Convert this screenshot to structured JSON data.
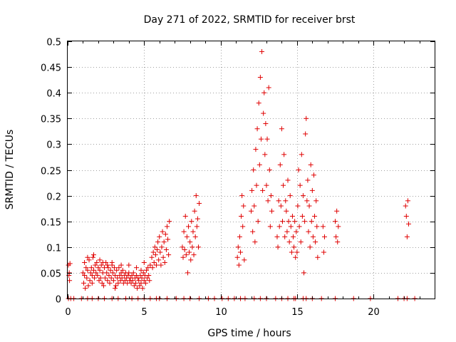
{
  "chart_data": {
    "type": "scatter",
    "title": "Day 271 of 2022, SRMTID for receiver brst",
    "xlabel": "GPS time / hours",
    "ylabel": "SRMTID / TECUs",
    "xlim": [
      0,
      24
    ],
    "ylim": [
      0,
      0.5
    ],
    "x_ticks": [
      0,
      5,
      10,
      15,
      20
    ],
    "y_ticks": [
      0,
      0.05,
      0.1,
      0.15,
      0.2,
      0.25,
      0.3,
      0.35,
      0.4,
      0.45,
      0.5
    ],
    "grid": true,
    "legend": "none",
    "marker": "+",
    "color": "#e00000",
    "series": [
      {
        "points": [
          [
            0.05,
            0.065
          ],
          [
            0.1,
            0.05
          ],
          [
            0.12,
            0.035
          ],
          [
            0.15,
            0.068
          ],
          [
            0.08,
            0.045
          ],
          [
            1.0,
            0.05
          ],
          [
            1.05,
            0.03
          ],
          [
            1.1,
            0.045
          ],
          [
            1.15,
            0.02
          ],
          [
            1.2,
            0.06
          ],
          [
            1.25,
            0.04
          ],
          [
            1.3,
            0.055
          ],
          [
            1.35,
            0.025
          ],
          [
            1.4,
            0.075
          ],
          [
            1.45,
            0.035
          ],
          [
            1.5,
            0.05
          ],
          [
            1.55,
            0.06
          ],
          [
            1.6,
            0.045
          ],
          [
            1.65,
            0.08
          ],
          [
            1.7,
            0.055
          ],
          [
            1.75,
            0.04
          ],
          [
            1.8,
            0.065
          ],
          [
            1.85,
            0.05
          ],
          [
            1.9,
            0.07
          ],
          [
            1.95,
            0.045
          ],
          [
            2.0,
            0.06
          ],
          [
            2.05,
            0.035
          ],
          [
            2.1,
            0.055
          ],
          [
            2.15,
            0.04
          ],
          [
            2.2,
            0.065
          ],
          [
            2.25,
            0.03
          ],
          [
            2.3,
            0.05
          ],
          [
            2.35,
            0.025
          ],
          [
            2.4,
            0.06
          ],
          [
            2.45,
            0.04
          ],
          [
            2.5,
            0.07
          ],
          [
            2.55,
            0.05
          ],
          [
            2.6,
            0.035
          ],
          [
            2.65,
            0.06
          ],
          [
            2.7,
            0.045
          ],
          [
            2.75,
            0.03
          ],
          [
            2.8,
            0.055
          ],
          [
            2.85,
            0.04
          ],
          [
            2.9,
            0.065
          ],
          [
            2.95,
            0.05
          ],
          [
            3.0,
            0.035
          ],
          [
            3.05,
            0.06
          ],
          [
            3.1,
            0.045
          ],
          [
            3.15,
            0.025
          ],
          [
            3.2,
            0.055
          ],
          [
            3.25,
            0.04
          ],
          [
            3.3,
            0.03
          ],
          [
            3.35,
            0.06
          ],
          [
            3.4,
            0.045
          ],
          [
            3.45,
            0.035
          ],
          [
            3.5,
            0.05
          ],
          [
            3.55,
            0.04
          ],
          [
            3.6,
            0.055
          ],
          [
            3.65,
            0.03
          ],
          [
            3.7,
            0.045
          ],
          [
            3.75,
            0.035
          ],
          [
            3.8,
            0.05
          ],
          [
            3.85,
            0.04
          ],
          [
            3.9,
            0.03
          ],
          [
            3.95,
            0.045
          ],
          [
            4.0,
            0.05
          ],
          [
            4.05,
            0.035
          ],
          [
            4.1,
            0.04
          ],
          [
            4.15,
            0.03
          ],
          [
            4.2,
            0.045
          ],
          [
            4.25,
            0.035
          ],
          [
            4.3,
            0.05
          ],
          [
            4.35,
            0.025
          ],
          [
            4.4,
            0.04
          ],
          [
            4.45,
            0.03
          ],
          [
            4.5,
            0.045
          ],
          [
            4.55,
            0.02
          ],
          [
            4.6,
            0.04
          ],
          [
            4.65,
            0.035
          ],
          [
            4.7,
            0.025
          ],
          [
            4.75,
            0.045
          ],
          [
            4.8,
            0.03
          ],
          [
            4.85,
            0.04
          ],
          [
            4.9,
            0.02
          ],
          [
            4.95,
            0.05
          ],
          [
            5.0,
            0.035
          ],
          [
            5.05,
            0.045
          ],
          [
            5.1,
            0.03
          ],
          [
            5.15,
            0.055
          ],
          [
            5.2,
            0.04
          ],
          [
            5.25,
            0.06
          ],
          [
            5.3,
            0.045
          ],
          [
            5.35,
            0.035
          ],
          [
            5.4,
            0.065
          ],
          [
            1.1,
            0.07
          ],
          [
            1.3,
            0.08
          ],
          [
            1.6,
            0.03
          ],
          [
            1.7,
            0.085
          ],
          [
            2.1,
            0.075
          ],
          [
            2.3,
            0.07
          ],
          [
            2.6,
            0.065
          ],
          [
            2.9,
            0.07
          ],
          [
            3.1,
            0.02
          ],
          [
            3.5,
            0.065
          ],
          [
            4.0,
            0.065
          ],
          [
            4.5,
            0.06
          ],
          [
            4.8,
            0.055
          ],
          [
            5.0,
            0.07
          ],
          [
            5.5,
            0.08
          ],
          [
            5.55,
            0.06
          ],
          [
            5.6,
            0.09
          ],
          [
            5.65,
            0.07
          ],
          [
            5.7,
            0.1
          ],
          [
            5.75,
            0.085
          ],
          [
            5.8,
            0.065
          ],
          [
            5.85,
            0.095
          ],
          [
            5.9,
            0.11
          ],
          [
            5.95,
            0.075
          ],
          [
            6.0,
            0.12
          ],
          [
            6.05,
            0.09
          ],
          [
            6.1,
            0.065
          ],
          [
            6.15,
            0.1
          ],
          [
            6.2,
            0.13
          ],
          [
            6.25,
            0.08
          ],
          [
            6.3,
            0.11
          ],
          [
            6.35,
            0.07
          ],
          [
            6.4,
            0.125
          ],
          [
            6.45,
            0.095
          ],
          [
            6.5,
            0.14
          ],
          [
            6.55,
            0.115
          ],
          [
            6.6,
            0.085
          ],
          [
            6.65,
            0.15
          ],
          [
            7.5,
            0.1
          ],
          [
            7.55,
            0.08
          ],
          [
            7.6,
            0.13
          ],
          [
            7.65,
            0.095
          ],
          [
            7.7,
            0.16
          ],
          [
            7.75,
            0.085
          ],
          [
            7.8,
            0.12
          ],
          [
            7.85,
            0.05
          ],
          [
            7.9,
            0.14
          ],
          [
            7.95,
            0.09
          ],
          [
            8.0,
            0.11
          ],
          [
            8.05,
            0.075
          ],
          [
            8.1,
            0.15
          ],
          [
            8.15,
            0.1
          ],
          [
            8.2,
            0.13
          ],
          [
            8.25,
            0.085
          ],
          [
            8.3,
            0.17
          ],
          [
            8.35,
            0.12
          ],
          [
            8.4,
            0.2
          ],
          [
            8.45,
            0.14
          ],
          [
            8.5,
            0.155
          ],
          [
            8.55,
            0.1
          ],
          [
            8.6,
            0.185
          ],
          [
            11.1,
            0.08
          ],
          [
            11.15,
            0.1
          ],
          [
            11.2,
            0.065
          ],
          [
            11.25,
            0.12
          ],
          [
            11.3,
            0.09
          ],
          [
            11.35,
            0.16
          ],
          [
            11.4,
            0.2
          ],
          [
            11.45,
            0.14
          ],
          [
            11.5,
            0.18
          ],
          [
            11.55,
            0.075
          ],
          [
            12.0,
            0.17
          ],
          [
            12.05,
            0.21
          ],
          [
            12.1,
            0.13
          ],
          [
            12.15,
            0.25
          ],
          [
            12.2,
            0.18
          ],
          [
            12.25,
            0.11
          ],
          [
            12.3,
            0.29
          ],
          [
            12.35,
            0.22
          ],
          [
            12.4,
            0.33
          ],
          [
            12.45,
            0.15
          ],
          [
            12.5,
            0.38
          ],
          [
            12.55,
            0.26
          ],
          [
            12.6,
            0.43
          ],
          [
            12.65,
            0.31
          ],
          [
            12.7,
            0.48
          ],
          [
            12.75,
            0.21
          ],
          [
            12.8,
            0.36
          ],
          [
            12.85,
            0.4
          ],
          [
            12.9,
            0.28
          ],
          [
            12.95,
            0.34
          ],
          [
            13.0,
            0.22
          ],
          [
            13.05,
            0.31
          ],
          [
            13.1,
            0.19
          ],
          [
            13.15,
            0.41
          ],
          [
            13.2,
            0.25
          ],
          [
            13.25,
            0.14
          ],
          [
            13.3,
            0.2
          ],
          [
            13.35,
            0.17
          ],
          [
            13.7,
            0.12
          ],
          [
            13.75,
            0.1
          ],
          [
            13.8,
            0.19
          ],
          [
            13.85,
            0.14
          ],
          [
            13.9,
            0.26
          ],
          [
            13.95,
            0.18
          ],
          [
            14.0,
            0.33
          ],
          [
            14.05,
            0.15
          ],
          [
            14.1,
            0.22
          ],
          [
            14.15,
            0.28
          ],
          [
            14.2,
            0.12
          ],
          [
            14.25,
            0.19
          ],
          [
            14.3,
            0.17
          ],
          [
            14.35,
            0.13
          ],
          [
            14.4,
            0.23
          ],
          [
            14.45,
            0.15
          ],
          [
            14.5,
            0.11
          ],
          [
            14.55,
            0.2
          ],
          [
            14.6,
            0.14
          ],
          [
            14.65,
            0.09
          ],
          [
            14.7,
            0.16
          ],
          [
            14.75,
            0.12
          ],
          [
            14.8,
            0.1
          ],
          [
            14.85,
            0.15
          ],
          [
            14.9,
            0.08
          ],
          [
            14.95,
            0.13
          ],
          [
            15.0,
            0.09
          ],
          [
            15.05,
            0.18
          ],
          [
            15.1,
            0.25
          ],
          [
            15.15,
            0.14
          ],
          [
            15.2,
            0.22
          ],
          [
            15.25,
            0.11
          ],
          [
            15.3,
            0.28
          ],
          [
            15.35,
            0.16
          ],
          [
            15.4,
            0.2
          ],
          [
            15.45,
            0.05
          ],
          [
            15.5,
            0.15
          ],
          [
            15.55,
            0.32
          ],
          [
            15.6,
            0.35
          ],
          [
            15.65,
            0.19
          ],
          [
            15.7,
            0.23
          ],
          [
            15.75,
            0.13
          ],
          [
            15.8,
            0.18
          ],
          [
            15.85,
            0.1
          ],
          [
            15.9,
            0.26
          ],
          [
            15.95,
            0.15
          ],
          [
            16.0,
            0.21
          ],
          [
            16.05,
            0.12
          ],
          [
            16.1,
            0.24
          ],
          [
            16.15,
            0.16
          ],
          [
            16.2,
            0.11
          ],
          [
            16.25,
            0.19
          ],
          [
            16.3,
            0.14
          ],
          [
            16.35,
            0.08
          ],
          [
            16.7,
            0.14
          ],
          [
            16.75,
            0.09
          ],
          [
            16.8,
            0.12
          ],
          [
            17.5,
            0.15
          ],
          [
            17.55,
            0.12
          ],
          [
            17.6,
            0.17
          ],
          [
            17.65,
            0.11
          ],
          [
            17.7,
            0.14
          ],
          [
            22.1,
            0.18
          ],
          [
            22.15,
            0.16
          ],
          [
            22.2,
            0.12
          ],
          [
            22.25,
            0.19
          ],
          [
            22.3,
            0.145
          ]
        ]
      }
    ],
    "baseline_points": [
      0.05,
      0.2,
      0.4,
      0.9,
      1.3,
      1.6,
      2.0,
      2.4,
      2.9,
      3.3,
      3.8,
      4.2,
      4.6,
      5.0,
      5.4,
      5.8,
      6.0,
      6.5,
      7.1,
      7.6,
      8.0,
      8.6,
      9.2,
      9.6,
      10.1,
      10.5,
      10.9,
      11.3,
      11.6,
      12.2,
      12.6,
      13.0,
      13.6,
      14.0,
      14.4,
      14.8,
      14.9,
      15.4,
      15.6,
      16.0,
      16.6,
      17.5,
      18.7,
      19.8,
      21.6,
      22.0,
      22.2,
      22.7
    ]
  }
}
